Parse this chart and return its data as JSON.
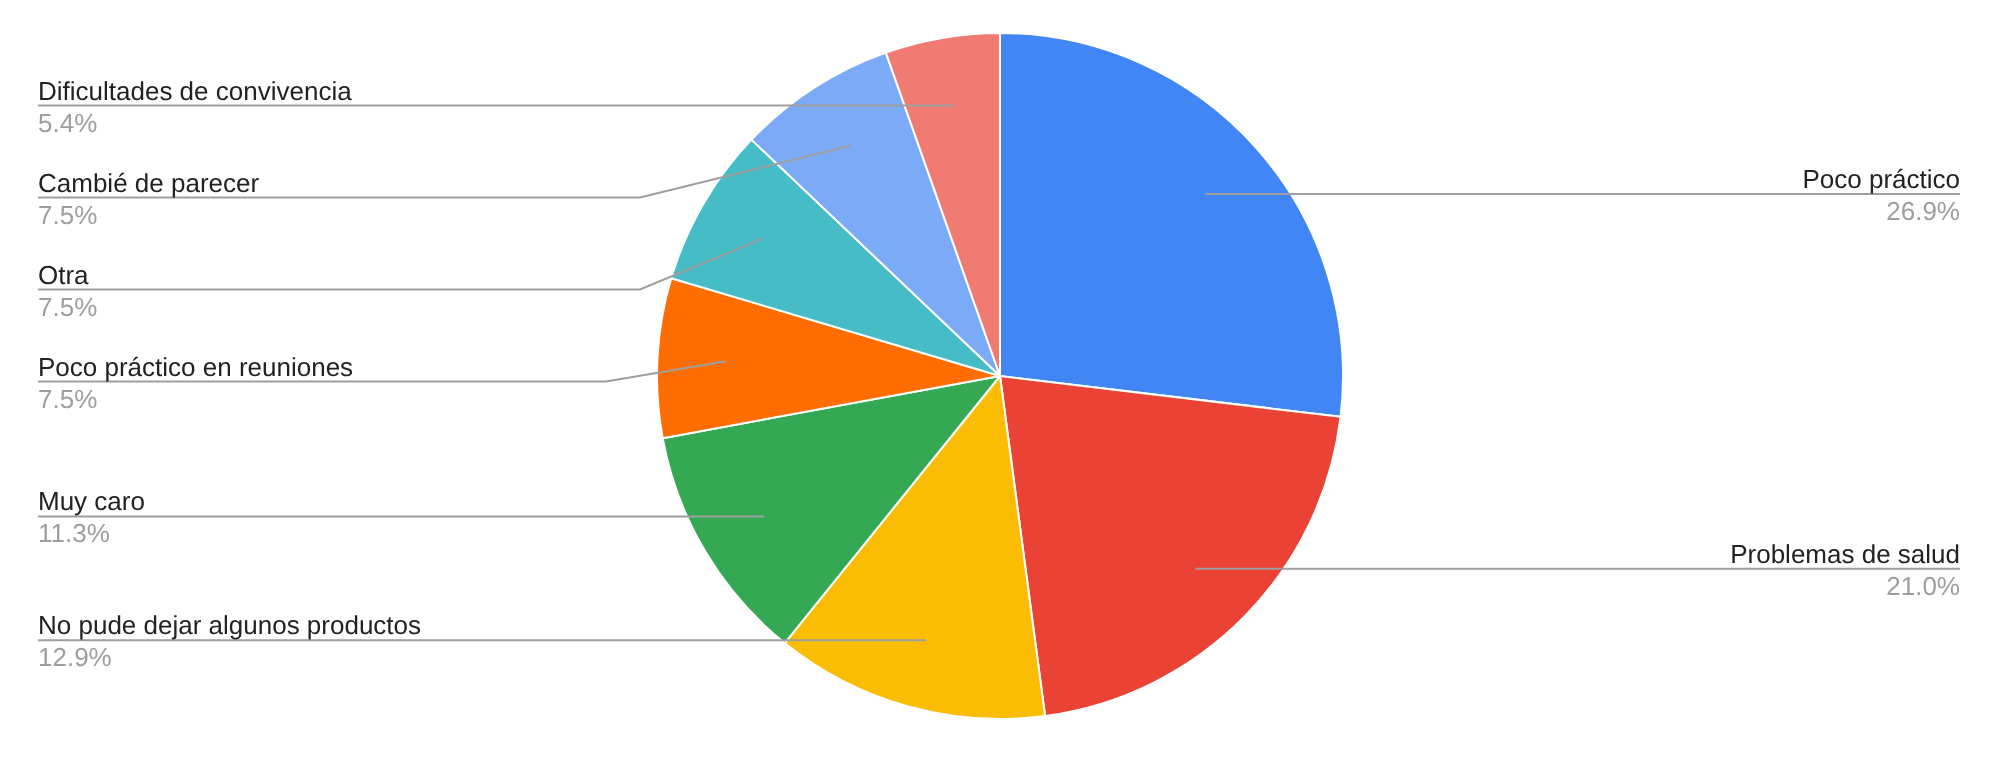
{
  "chart_data": {
    "type": "pie",
    "categories": [
      "Poco práctico",
      "Problemas de salud",
      "No pude dejar algunos productos",
      "Muy caro",
      "Poco práctico en reuniones",
      "Otra",
      "Cambié de parecer",
      "Dificultades de convivencia"
    ],
    "values": [
      26.9,
      21.0,
      12.9,
      11.3,
      7.5,
      7.5,
      7.5,
      5.4
    ],
    "value_labels": [
      "26.9%",
      "21.0%",
      "12.9%",
      "11.3%",
      "7.5%",
      "7.5%",
      "7.5%",
      "5.4%"
    ],
    "colors": [
      "#4285f4",
      "#ea4335",
      "#fbbc04",
      "#34a853",
      "#ff6d01",
      "#46bdc6",
      "#7baaf7",
      "#f07b72"
    ],
    "legend": false
  }
}
